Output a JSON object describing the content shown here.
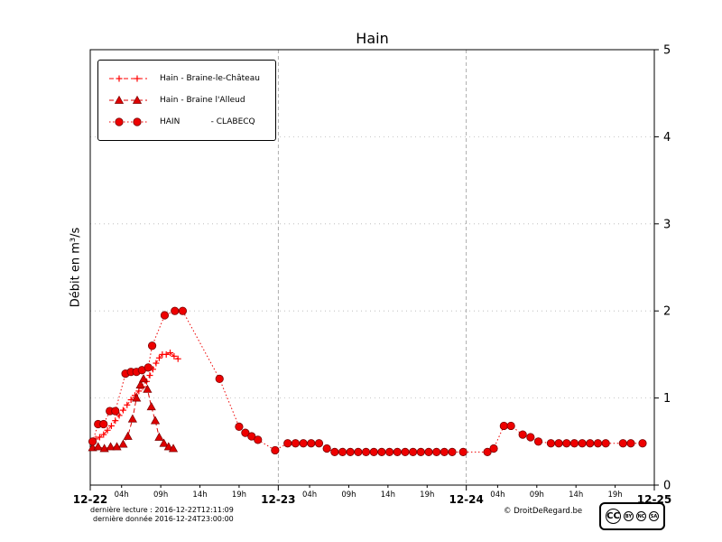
{
  "title": "Hain",
  "ylabel": "Débit en m³/s",
  "footer": {
    "line1": "dernière lecture : 2016-12-22T12:11:09",
    "line2": "dernière donnée  2016-12-24T23:00:00",
    "copyright": "© DroitDeRegard.be",
    "license": {
      "logo": "CC",
      "terms": [
        "BY",
        "NC",
        "SA"
      ]
    }
  },
  "chart_data": {
    "type": "line",
    "title": "Hain",
    "xlabel": "",
    "ylabel": "Débit en m³/s",
    "x_unit": "hours since 2016-12-22 00:00",
    "xlim": [
      0,
      72
    ],
    "ylim": [
      0,
      5
    ],
    "yticks": [
      0,
      1,
      2,
      3,
      4,
      5
    ],
    "x_major_ticks": [
      {
        "t": 0,
        "label": "12-22"
      },
      {
        "t": 24,
        "label": "12-23"
      },
      {
        "t": 48,
        "label": "12-24"
      },
      {
        "t": 72,
        "label": "12-25"
      }
    ],
    "x_minor_ticks": [
      {
        "t": 4,
        "label": "04h"
      },
      {
        "t": 9,
        "label": "09h"
      },
      {
        "t": 14,
        "label": "14h"
      },
      {
        "t": 19,
        "label": "19h"
      },
      {
        "t": 28,
        "label": "04h"
      },
      {
        "t": 33,
        "label": "09h"
      },
      {
        "t": 38,
        "label": "14h"
      },
      {
        "t": 43,
        "label": "19h"
      },
      {
        "t": 52,
        "label": "04h"
      },
      {
        "t": 57,
        "label": "09h"
      },
      {
        "t": 62,
        "label": "14h"
      },
      {
        "t": 67,
        "label": "19h"
      }
    ],
    "grid": {
      "horizontal": [
        1,
        2,
        3,
        4
      ],
      "vertical": [
        24,
        48
      ]
    },
    "legend_position": "upper left",
    "series": [
      {
        "name": "Hain - Braine-le-Château",
        "color": "#ff0000",
        "marker": "plus",
        "line": "dashed",
        "points": [
          [
            0.2,
            0.5
          ],
          [
            0.7,
            0.53
          ],
          [
            1.2,
            0.55
          ],
          [
            1.7,
            0.58
          ],
          [
            2.2,
            0.63
          ],
          [
            2.7,
            0.68
          ],
          [
            3.2,
            0.74
          ],
          [
            3.7,
            0.8
          ],
          [
            4.2,
            0.86
          ],
          [
            4.7,
            0.92
          ],
          [
            5.2,
            0.98
          ],
          [
            5.7,
            1.03
          ],
          [
            6.2,
            1.08
          ],
          [
            6.7,
            1.13
          ],
          [
            7.2,
            1.19
          ],
          [
            7.6,
            1.26
          ],
          [
            8.0,
            1.33
          ],
          [
            8.4,
            1.4
          ],
          [
            8.8,
            1.46
          ],
          [
            9.2,
            1.5
          ],
          [
            9.7,
            1.5
          ],
          [
            10.2,
            1.52
          ],
          [
            10.7,
            1.48
          ],
          [
            11.2,
            1.45
          ]
        ]
      },
      {
        "name": "Hain - Braine l'Alleud",
        "color": "#dd0000",
        "marker": "triangle",
        "line": "dashed",
        "points": [
          [
            0.3,
            0.43
          ],
          [
            1.0,
            0.44
          ],
          [
            1.8,
            0.42
          ],
          [
            2.6,
            0.44
          ],
          [
            3.4,
            0.44
          ],
          [
            4.2,
            0.47
          ],
          [
            4.8,
            0.56
          ],
          [
            5.4,
            0.76
          ],
          [
            5.9,
            1.0
          ],
          [
            6.4,
            1.15
          ],
          [
            6.8,
            1.22
          ],
          [
            7.3,
            1.1
          ],
          [
            7.8,
            0.9
          ],
          [
            8.3,
            0.74
          ],
          [
            8.8,
            0.55
          ],
          [
            9.4,
            0.48
          ],
          [
            10.0,
            0.44
          ],
          [
            10.6,
            0.42
          ]
        ]
      },
      {
        "name": "HAIN            - CLABECQ",
        "color": "#ee0000",
        "marker": "circle",
        "line": "dotted",
        "points": [
          [
            0.3,
            0.5
          ],
          [
            1.0,
            0.7
          ],
          [
            1.7,
            0.7
          ],
          [
            2.5,
            0.85
          ],
          [
            3.2,
            0.85
          ],
          [
            4.5,
            1.28
          ],
          [
            5.2,
            1.3
          ],
          [
            5.9,
            1.3
          ],
          [
            6.6,
            1.32
          ],
          [
            7.4,
            1.35
          ],
          [
            7.9,
            1.6
          ],
          [
            9.5,
            1.95
          ],
          [
            10.8,
            2.0
          ],
          [
            11.8,
            2.0
          ],
          [
            16.5,
            1.22
          ],
          [
            19.0,
            0.67
          ],
          [
            19.8,
            0.6
          ],
          [
            20.6,
            0.56
          ],
          [
            21.4,
            0.52
          ],
          [
            23.6,
            0.4
          ],
          [
            25.2,
            0.48
          ],
          [
            26.2,
            0.48
          ],
          [
            27.2,
            0.48
          ],
          [
            28.2,
            0.48
          ],
          [
            29.2,
            0.48
          ],
          [
            30.2,
            0.42
          ],
          [
            31.2,
            0.38
          ],
          [
            32.2,
            0.38
          ],
          [
            33.2,
            0.38
          ],
          [
            34.2,
            0.38
          ],
          [
            35.2,
            0.38
          ],
          [
            36.2,
            0.38
          ],
          [
            37.2,
            0.38
          ],
          [
            38.2,
            0.38
          ],
          [
            39.2,
            0.38
          ],
          [
            40.2,
            0.38
          ],
          [
            41.2,
            0.38
          ],
          [
            42.2,
            0.38
          ],
          [
            43.2,
            0.38
          ],
          [
            44.2,
            0.38
          ],
          [
            45.2,
            0.38
          ],
          [
            46.2,
            0.38
          ],
          [
            47.6,
            0.38
          ],
          [
            50.7,
            0.38
          ],
          [
            51.5,
            0.42
          ],
          [
            52.8,
            0.68
          ],
          [
            53.7,
            0.68
          ],
          [
            55.2,
            0.58
          ],
          [
            56.2,
            0.55
          ],
          [
            57.2,
            0.5
          ],
          [
            58.8,
            0.48
          ],
          [
            59.8,
            0.48
          ],
          [
            60.8,
            0.48
          ],
          [
            61.8,
            0.48
          ],
          [
            62.8,
            0.48
          ],
          [
            63.8,
            0.48
          ],
          [
            64.8,
            0.48
          ],
          [
            65.8,
            0.48
          ],
          [
            68.0,
            0.48
          ],
          [
            69.0,
            0.48
          ],
          [
            70.5,
            0.48
          ]
        ]
      }
    ]
  }
}
